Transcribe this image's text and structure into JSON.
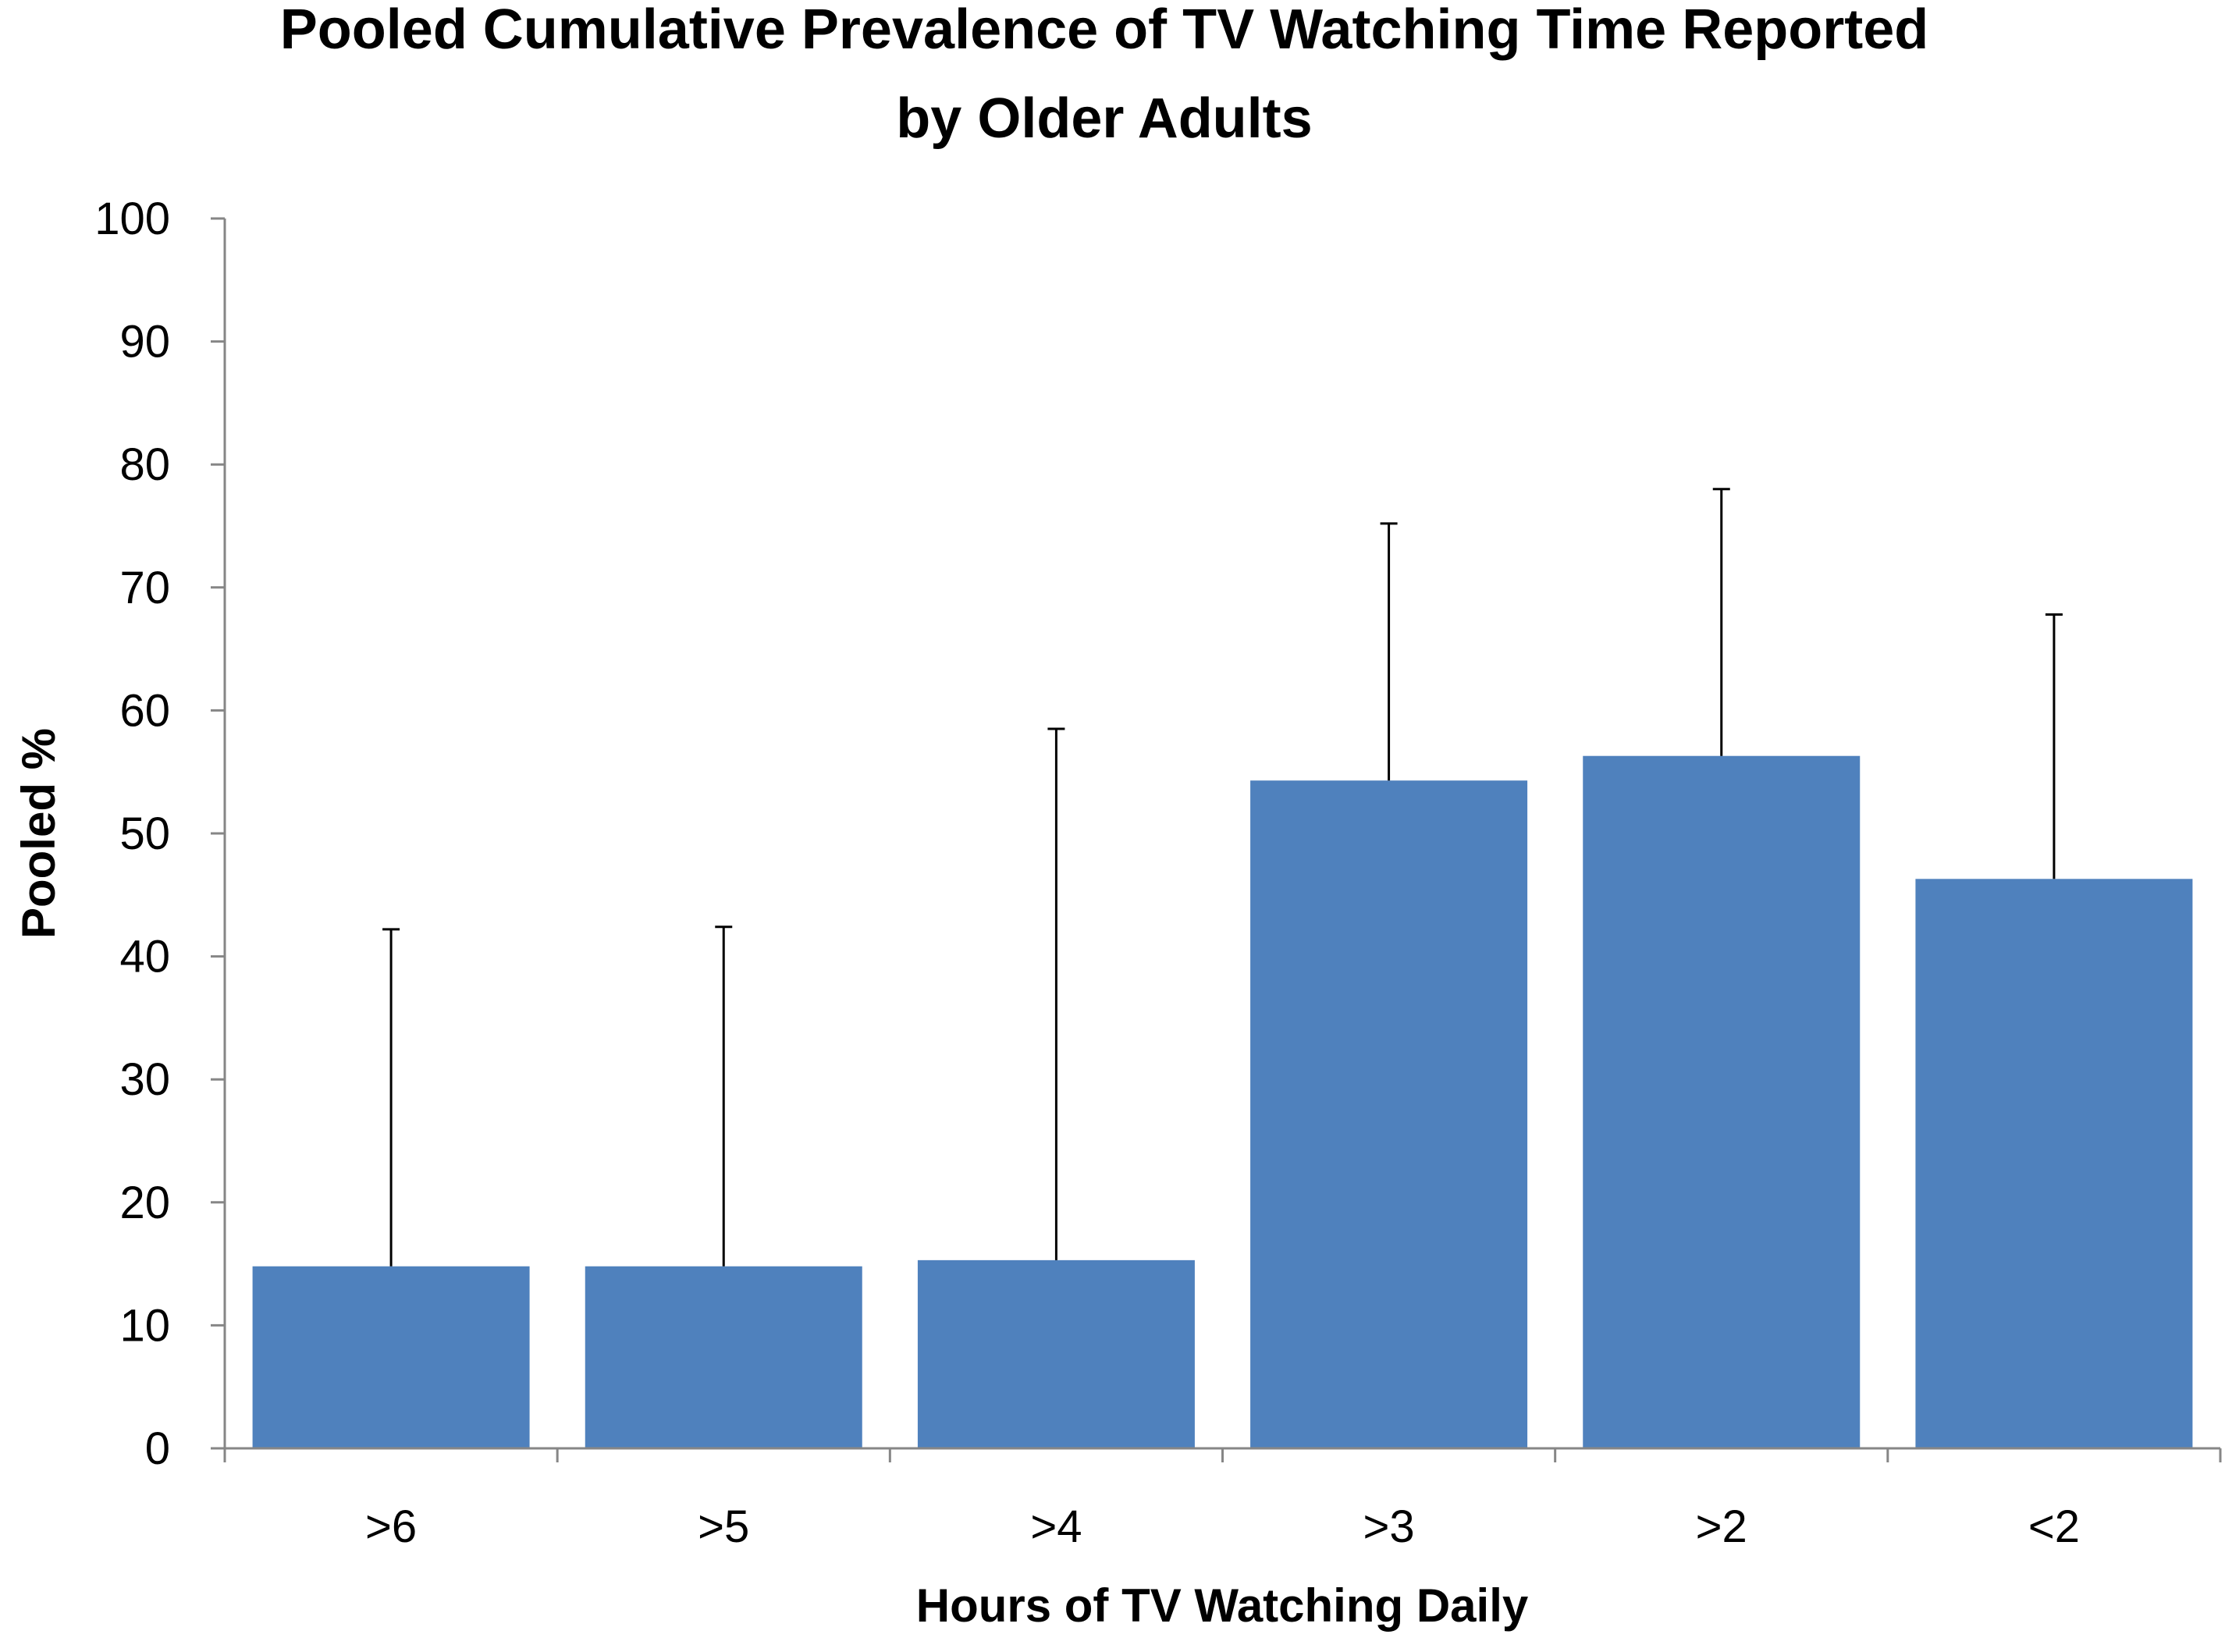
{
  "chart_data": {
    "type": "bar",
    "title_lines": [
      "Pooled Cumulative Prevalence of TV Watching Time Reported",
      "by Older Adults"
    ],
    "xlabel": "Hours of TV Watching Daily",
    "ylabel": "Pooled %",
    "categories": [
      ">6",
      ">5",
      ">4",
      ">3",
      ">2",
      "<2"
    ],
    "values": [
      14.8,
      14.8,
      15.3,
      54.3,
      56.3,
      46.3
    ],
    "error_upper": [
      42.2,
      42.4,
      58.5,
      75.2,
      78.0,
      67.8
    ],
    "ylim": [
      0,
      100
    ],
    "yticks": [
      "0",
      "10",
      "20",
      "30",
      "40",
      "50",
      "60",
      "70",
      "80",
      "90",
      "100"
    ],
    "grid": false,
    "legend": "none",
    "bar_color": "#4F81BD",
    "axis_color": "#868686",
    "error_bar_color": "#000000"
  }
}
